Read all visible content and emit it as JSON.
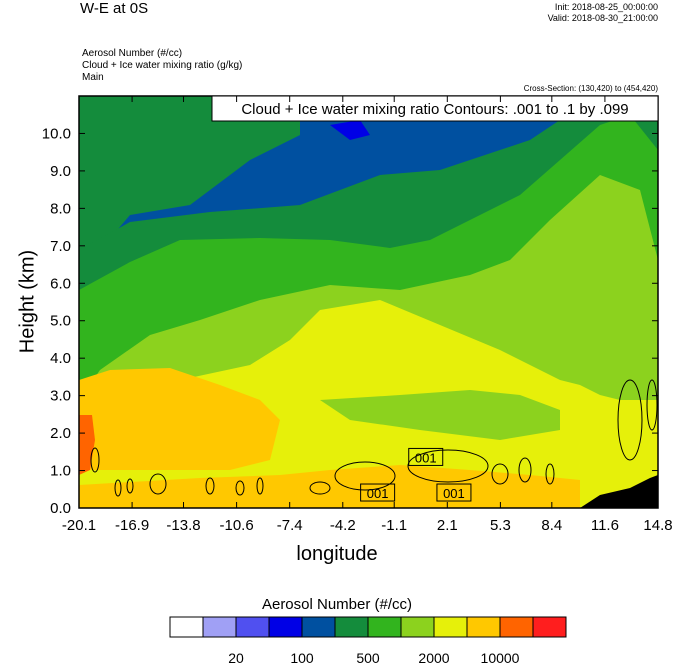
{
  "header": {
    "title": "W-E at 0S",
    "init": "Init: 2018-08-25_00:00:00",
    "valid": "Valid: 2018-08-30_21:00:00",
    "var1": "Aerosol Number   (#/cc)",
    "var2": "Cloud + Ice water mixing ratio   (g/kg)",
    "var3": "Main",
    "cross_section": "Cross-Section: (130,420) to (454,420)"
  },
  "chart_data": {
    "type": "heatmap",
    "contour_label": "Cloud + Ice water mixing ratio Contours: .001 to .1 by .099",
    "xlabel": "longitude",
    "ylabel": "Height (km)",
    "xlim": [
      -20.1,
      14.8
    ],
    "ylim": [
      0.0,
      11.0
    ],
    "x_ticks": [
      "-20.1",
      "-16.9",
      "-13.8",
      "-10.6",
      "-7.4",
      "-4.2",
      "-1.1",
      "2.1",
      "5.3",
      "8.4",
      "11.6",
      "14.8"
    ],
    "y_ticks": [
      "0.0",
      "1.0",
      "2.0",
      "3.0",
      "4.0",
      "5.0",
      "6.0",
      "7.0",
      "8.0",
      "9.0",
      "10.0"
    ],
    "contour_labels": [
      {
        "text": "001",
        "x": 0.8,
        "y": 1.35
      },
      {
        "text": "001",
        "x": -2.1,
        "y": 0.4
      },
      {
        "text": "001",
        "x": 2.5,
        "y": 0.4
      }
    ],
    "colorbar": {
      "title": "Aerosol Number  (#/cc)",
      "colors": [
        "#ffffff",
        "#a0a0f5",
        "#5050f0",
        "#0000e6",
        "#0050a0",
        "#148c3c",
        "#32b41e",
        "#8cd21e",
        "#e6f00a",
        "#ffc800",
        "#ff6400",
        "#ff1e1e"
      ],
      "labels": [
        "20",
        "100",
        "500",
        "2000",
        "10000"
      ]
    },
    "field_bands_by_height_km": [
      {
        "level": "0.8-1 km",
        "value_class": "2000-5000",
        "color": "#ffc800"
      },
      {
        "level": "1-4 km",
        "value_class": "1000-2000",
        "color": "#e6f00a"
      },
      {
        "level": "3-6 km",
        "value_class": "500-1000",
        "color": "#8cd21e"
      },
      {
        "level": "5-7.5 km",
        "value_class": "200-500",
        "color": "#32b41e"
      },
      {
        "level": "7-9 km",
        "value_class": "100-200",
        "color": "#148c3c"
      },
      {
        "level": "8-11 km",
        "value_class": "50-100",
        "color": "#0050a0"
      }
    ]
  }
}
